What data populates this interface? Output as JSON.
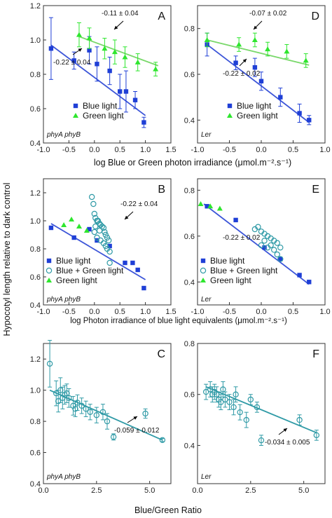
{
  "colors": {
    "blue": "#1f3fd6",
    "green": "#2ee62e",
    "teal": "#2f9aa6",
    "reg_blue": "#3c55d8",
    "reg_green": "#79d86a"
  },
  "shared": {
    "ylabel": "Hypocotyl length relative to dark control",
    "xlabel_row1": "log Blue or Green photon irradiance (μmol.m⁻².s⁻¹)",
    "xlabel_row2": "log Photon irradiance of blue light equivalents (μmol.m⁻².s⁻¹)",
    "xlabel_row3": "Blue/Green Ratio"
  },
  "chart_data": [
    {
      "panel": "A",
      "type": "scatter",
      "genotype": "phyA phyB",
      "xlim": [
        -1,
        1.5
      ],
      "ylim": [
        0.4,
        1.2
      ],
      "xticks": [
        "-1.0",
        "-0.5",
        "0.0",
        "0.5",
        "1.0",
        "1.5"
      ],
      "yticks": [
        "0.4",
        "0.6",
        "0.8",
        "1.0",
        "1.2"
      ],
      "legend": [
        "Blue light",
        "Green light"
      ],
      "series": [
        {
          "name": "Blue light",
          "marker": "square",
          "x": [
            -0.85,
            -0.4,
            -0.1,
            0.05,
            0.3,
            0.5,
            0.62,
            0.8,
            0.97
          ],
          "y": [
            0.95,
            0.88,
            0.94,
            0.86,
            0.82,
            0.7,
            0.7,
            0.65,
            0.52
          ],
          "err": [
            0.18,
            0.05,
            0.08,
            0.1,
            0.08,
            0.1,
            0.12,
            0.05,
            0.03
          ]
        },
        {
          "name": "Green light",
          "marker": "triangle",
          "x": [
            -0.3,
            -0.1,
            0.2,
            0.4,
            0.6,
            0.85,
            1.2
          ],
          "y": [
            1.03,
            1.01,
            0.95,
            0.93,
            0.9,
            0.87,
            0.83
          ],
          "err": [
            0.07,
            0.06,
            0.06,
            0.07,
            0.06,
            0.05,
            0.04
          ]
        }
      ],
      "fits": [
        {
          "series": "Blue light",
          "x": [
            -0.85,
            1.0
          ],
          "y": [
            0.97,
            0.56
          ]
        },
        {
          "series": "Green light",
          "x": [
            -0.3,
            1.25
          ],
          "y": [
            1.02,
            0.85
          ]
        }
      ],
      "annotations": [
        "-0.11 ± 0.04",
        "-0.22 ± 0.04"
      ]
    },
    {
      "panel": "D",
      "type": "scatter",
      "genotype": "Ler",
      "xlim": [
        -1,
        1
      ],
      "ylim": [
        0.3,
        0.9
      ],
      "xticks": [
        "-1.0",
        "-0.5",
        "0.0",
        "0.5",
        "1.0"
      ],
      "yticks": [
        "0.4",
        "0.6",
        "0.8"
      ],
      "legend": [
        "Blue light",
        "Green light"
      ],
      "series": [
        {
          "name": "Blue light",
          "marker": "square",
          "x": [
            -0.85,
            -0.4,
            -0.1,
            0.0,
            0.3,
            0.6,
            0.75
          ],
          "y": [
            0.73,
            0.65,
            0.63,
            0.57,
            0.5,
            0.43,
            0.4
          ],
          "err": [
            0.05,
            0.03,
            0.04,
            0.04,
            0.04,
            0.04,
            0.02
          ]
        },
        {
          "name": "Green light",
          "marker": "triangle",
          "x": [
            -0.85,
            -0.35,
            -0.1,
            0.1,
            0.4,
            0.7
          ],
          "y": [
            0.75,
            0.73,
            0.75,
            0.71,
            0.7,
            0.66
          ],
          "err": [
            0.03,
            0.03,
            0.03,
            0.03,
            0.03,
            0.03
          ]
        }
      ],
      "fits": [
        {
          "series": "Blue light",
          "x": [
            -0.85,
            0.75
          ],
          "y": [
            0.73,
            0.39
          ]
        },
        {
          "series": "Green light",
          "x": [
            -0.85,
            0.75
          ],
          "y": [
            0.75,
            0.64
          ]
        }
      ],
      "annotations": [
        "-0.07 ± 0.02",
        "-0.22 ± 0.02"
      ]
    },
    {
      "panel": "B",
      "type": "scatter",
      "genotype": "phyA phyB",
      "xlim": [
        -1,
        1.5
      ],
      "ylim": [
        0.4,
        1.3
      ],
      "xticks": [
        "-1.0",
        "-0.5",
        "0.0",
        "0.5",
        "1.0",
        "1.5"
      ],
      "yticks": [
        "0.4",
        "0.6",
        "0.8",
        "1.0",
        "1.2"
      ],
      "legend": [
        "Blue light",
        "Blue + Green light",
        "Green light"
      ],
      "series": [
        {
          "name": "Blue light",
          "marker": "square",
          "x": [
            -0.85,
            -0.4,
            -0.1,
            0.05,
            0.3,
            0.6,
            0.75,
            0.85,
            0.97
          ],
          "y": [
            0.95,
            0.88,
            0.94,
            0.86,
            0.82,
            0.7,
            0.7,
            0.65,
            0.52
          ]
        },
        {
          "name": "Blue + Green light",
          "marker": "circle",
          "x": [
            -0.05,
            -0.02,
            0.0,
            0.02,
            0.05,
            0.07,
            0.1,
            0.12,
            0.15,
            0.18,
            0.2,
            0.22,
            0.25,
            0.28,
            0.3,
            0.0,
            0.05,
            0.12,
            0.18,
            0.22,
            0.25,
            0.3,
            0.1,
            0.02
          ],
          "y": [
            1.17,
            1.12,
            1.05,
            1.02,
            1.0,
            1.0,
            0.98,
            0.97,
            0.96,
            0.95,
            0.92,
            0.9,
            0.88,
            0.86,
            0.78,
            0.92,
            0.88,
            0.86,
            0.84,
            0.82,
            0.8,
            0.7,
            0.93,
            0.96
          ]
        },
        {
          "name": "Green light",
          "marker": "triangle",
          "x": [
            -0.6,
            -0.45,
            -0.3,
            -0.15
          ],
          "y": [
            0.97,
            1.01,
            0.96,
            0.93
          ]
        }
      ],
      "fits": [
        {
          "series": "all",
          "x": [
            -0.85,
            1.0
          ],
          "y": [
            0.98,
            0.58
          ]
        }
      ],
      "annotations": [
        "-0.22 ± 0.04"
      ]
    },
    {
      "panel": "E",
      "type": "scatter",
      "genotype": "Ler",
      "xlim": [
        -1,
        1
      ],
      "ylim": [
        0.3,
        0.85
      ],
      "xticks": [
        "-1.0",
        "-0.5",
        "0.0",
        "0.5",
        "1.0"
      ],
      "yticks": [
        "0.4",
        "0.6",
        "0.8"
      ],
      "legend": [
        "Blue light",
        "Blue + Green light",
        "Green light"
      ],
      "series": [
        {
          "name": "Blue light",
          "marker": "square",
          "x": [
            -0.85,
            -0.4,
            0.05,
            0.3,
            0.6,
            0.75
          ],
          "y": [
            0.73,
            0.67,
            0.55,
            0.5,
            0.43,
            0.4
          ]
        },
        {
          "name": "Blue + Green light",
          "marker": "circle",
          "x": [
            -0.1,
            -0.05,
            0.0,
            0.05,
            0.1,
            0.15,
            0.2,
            0.25,
            0.3,
            0.0,
            0.1,
            0.2,
            0.25,
            0.3,
            0.05,
            0.15
          ],
          "y": [
            0.63,
            0.64,
            0.62,
            0.61,
            0.6,
            0.59,
            0.58,
            0.57,
            0.55,
            0.56,
            0.55,
            0.54,
            0.52,
            0.5,
            0.58,
            0.56
          ]
        },
        {
          "name": "Green light",
          "marker": "triangle",
          "x": [
            -0.95,
            -0.8,
            -0.65
          ],
          "y": [
            0.74,
            0.73,
            0.72
          ]
        }
      ],
      "fits": [
        {
          "series": "all",
          "x": [
            -0.9,
            0.75
          ],
          "y": [
            0.74,
            0.39
          ]
        }
      ],
      "annotations": [
        "-0.22 ± 0.02"
      ]
    },
    {
      "panel": "C",
      "type": "scatter",
      "genotype": "phyA phyB",
      "xlim": [
        0,
        6
      ],
      "ylim": [
        0.4,
        1.3
      ],
      "xticks": [
        "0.0",
        "2.5",
        "5.0"
      ],
      "yticks": [
        "0.4",
        "0.6",
        "0.8",
        "1.0",
        "1.2"
      ],
      "series": [
        {
          "name": "Blue + Green light",
          "marker": "circle",
          "x": [
            0.3,
            0.6,
            0.7,
            0.8,
            0.9,
            1.0,
            1.1,
            1.2,
            1.4,
            1.5,
            1.6,
            1.8,
            2.0,
            2.2,
            2.5,
            2.8,
            3.0,
            3.3,
            4.8,
            5.6
          ],
          "y": [
            1.17,
            0.98,
            0.93,
            1.0,
            0.95,
            0.97,
            0.98,
            0.95,
            0.9,
            0.88,
            0.92,
            0.9,
            0.88,
            0.86,
            0.84,
            0.86,
            0.8,
            0.7,
            0.85,
            0.68
          ],
          "err": [
            0.15,
            0.08,
            0.07,
            0.08,
            0.07,
            0.06,
            0.06,
            0.06,
            0.06,
            0.05,
            0.05,
            0.05,
            0.05,
            0.05,
            0.05,
            0.05,
            0.05,
            0.02,
            0.03,
            0.01
          ]
        }
      ],
      "fits": [
        {
          "series": "all",
          "x": [
            0.3,
            5.6
          ],
          "y": [
            1.0,
            0.68
          ]
        }
      ],
      "annotations": [
        "-0.059 ± 0.012"
      ]
    },
    {
      "panel": "F",
      "type": "scatter",
      "genotype": "Ler",
      "xlim": [
        0,
        6
      ],
      "ylim": [
        0.25,
        0.8
      ],
      "xticks": [
        "0.0",
        "2.5",
        "5.0"
      ],
      "yticks": [
        "0.4",
        "0.6",
        "0.8"
      ],
      "series": [
        {
          "name": "Blue + Green light",
          "marker": "circle",
          "x": [
            0.4,
            0.6,
            0.7,
            0.8,
            0.9,
            1.0,
            1.1,
            1.2,
            1.3,
            1.5,
            1.7,
            1.8,
            2.0,
            2.3,
            2.5,
            2.8,
            3.0,
            4.8,
            5.6
          ],
          "y": [
            0.61,
            0.62,
            0.6,
            0.61,
            0.6,
            0.58,
            0.57,
            0.62,
            0.58,
            0.57,
            0.55,
            0.6,
            0.53,
            0.5,
            0.58,
            0.55,
            0.42,
            0.5,
            0.44
          ],
          "err": [
            0.03,
            0.03,
            0.03,
            0.03,
            0.03,
            0.03,
            0.03,
            0.03,
            0.03,
            0.03,
            0.03,
            0.03,
            0.03,
            0.03,
            0.02,
            0.02,
            0.02,
            0.02,
            0.02
          ]
        }
      ],
      "fits": [
        {
          "series": "all",
          "x": [
            0.4,
            5.6
          ],
          "y": [
            0.63,
            0.45
          ]
        }
      ],
      "annotations": [
        "-0.034 ± 0.005"
      ]
    }
  ]
}
